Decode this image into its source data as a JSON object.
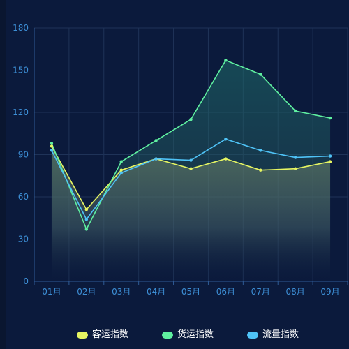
{
  "chart_data": {
    "type": "line",
    "categories": [
      "01月",
      "02月",
      "03月",
      "04月",
      "05月",
      "06月",
      "07月",
      "08月",
      "09月"
    ],
    "ylim": [
      0,
      180
    ],
    "yticks": [
      0,
      30,
      60,
      90,
      120,
      150,
      180
    ],
    "grid": true,
    "legend_position": "bottom",
    "series": [
      {
        "name": "客运指数",
        "color": "#e6f562",
        "values": [
          96,
          51,
          79,
          87,
          80,
          87,
          79,
          80,
          85
        ],
        "area": true
      },
      {
        "name": "货运指数",
        "color": "#5ff0a0",
        "values": [
          98,
          37,
          85,
          100,
          115,
          157,
          147,
          121,
          116
        ],
        "area": true
      },
      {
        "name": "流量指数",
        "color": "#4fc3f7",
        "values": [
          93,
          44,
          77,
          87,
          86,
          101,
          93,
          88,
          89
        ],
        "area": false
      }
    ]
  },
  "colors": {
    "background": "#0b1a3c",
    "axis_label": "#3d8fd6",
    "grid": "#1f3358",
    "legend_text": "#ffffff"
  }
}
